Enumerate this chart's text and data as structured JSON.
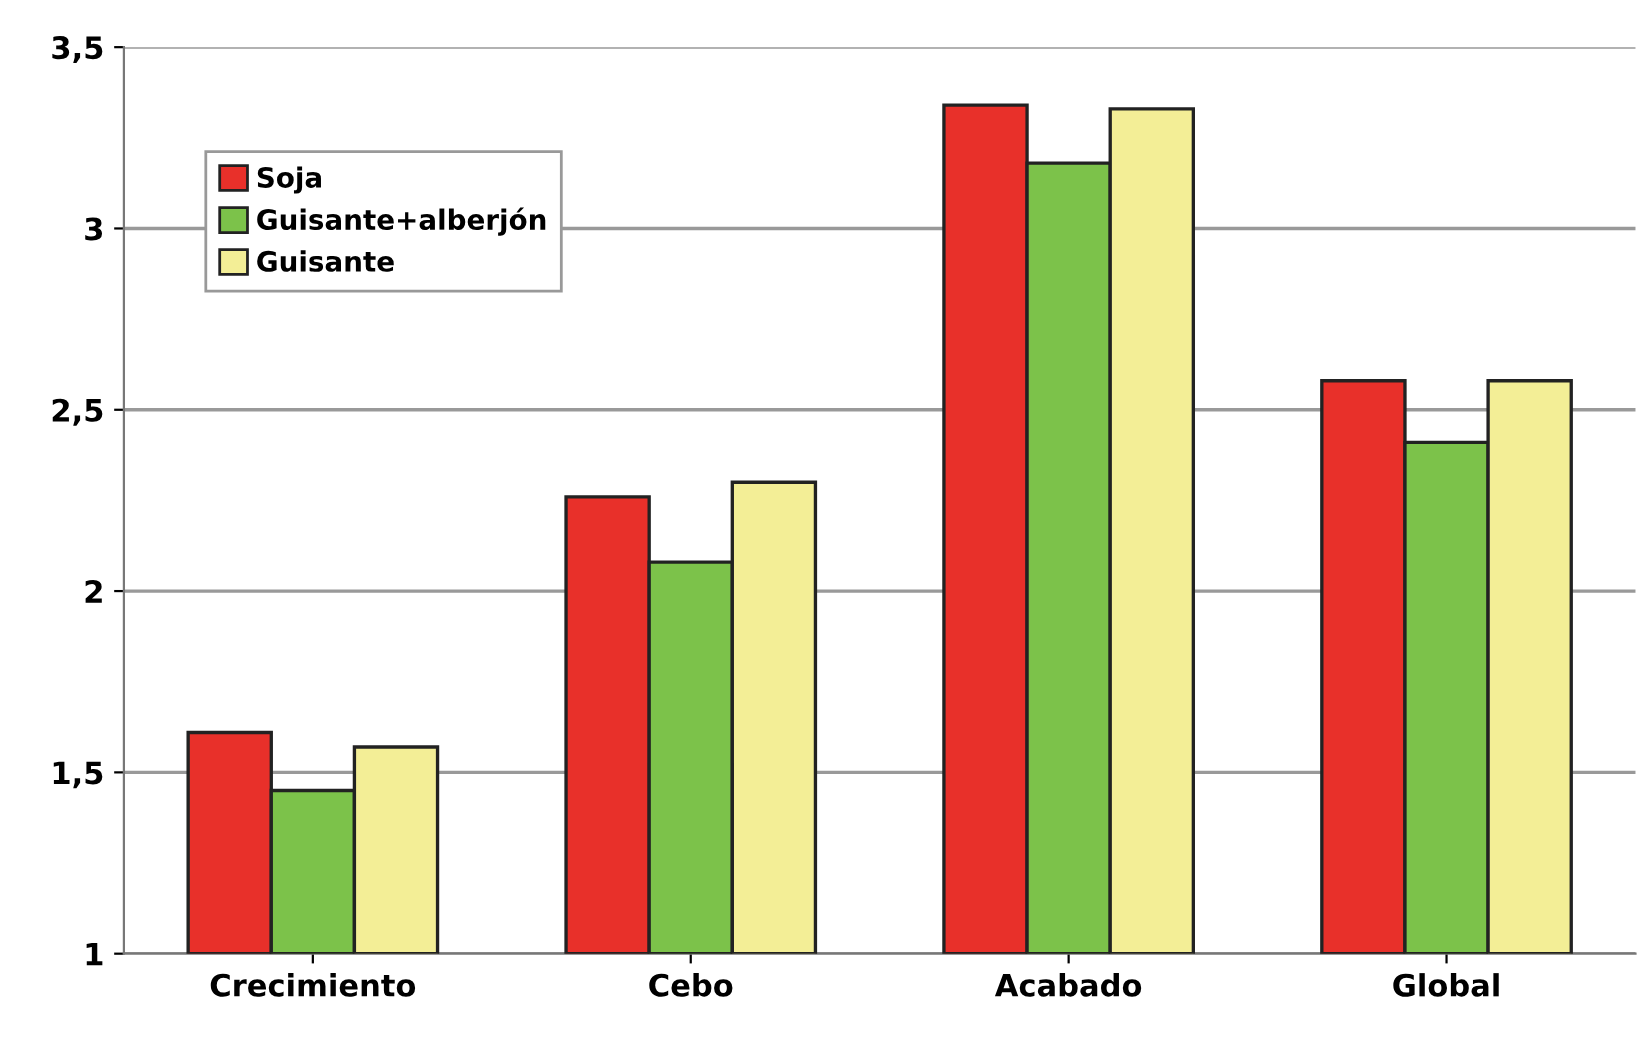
{
  "chart_data": {
    "type": "bar",
    "categories": [
      "Crecimiento",
      "Cebo",
      "Acabado",
      "Global"
    ],
    "series": [
      {
        "name": "Soja",
        "color": "#e8302a",
        "values": [
          1.61,
          2.26,
          3.34,
          2.58
        ]
      },
      {
        "name": "Guisante+alberjón",
        "color": "#7cc24a",
        "values": [
          1.45,
          2.08,
          3.18,
          2.41
        ]
      },
      {
        "name": "Guisante",
        "color": "#f3ee96",
        "values": [
          1.57,
          2.3,
          3.33,
          2.58
        ]
      }
    ],
    "ylim": [
      1,
      3.5
    ],
    "yticks": [
      1,
      {
        "value": 1.5,
        "label": "1,5"
      },
      2,
      {
        "value": 2.5,
        "label": "2,5"
      },
      3,
      {
        "value": 3.5,
        "label": "3,5"
      }
    ],
    "grid": "y",
    "legend": "top left"
  }
}
